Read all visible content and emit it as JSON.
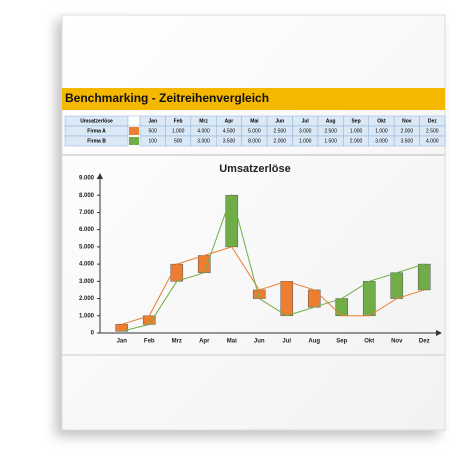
{
  "header": {
    "title": "Benchmarking - Zeitreihenvergleich"
  },
  "table": {
    "corner": "Umsatzerlöse",
    "columns": [
      "Jan",
      "Feb",
      "Mrz",
      "Apr",
      "Mai",
      "Jun",
      "Jul",
      "Aug",
      "Sep",
      "Okt",
      "Nov",
      "Dez"
    ],
    "rows": [
      {
        "label": "Firma A",
        "cells": [
          "500",
          "1.000",
          "4.000",
          "4.500",
          "5.000",
          "2.500",
          "3.000",
          "2.500",
          "1.000",
          "1.000",
          "2.000",
          "2.500"
        ]
      },
      {
        "label": "Firma B",
        "cells": [
          "100",
          "500",
          "3.000",
          "3.500",
          "8.000",
          "2.000",
          "1.000",
          "1.500",
          "2.000",
          "3.000",
          "3.500",
          "4.000"
        ]
      }
    ]
  },
  "chart_data": {
    "type": "range_bar",
    "title": "Umsatzerlöse",
    "categories": [
      "Jan",
      "Feb",
      "Mrz",
      "Apr",
      "Mai",
      "Jun",
      "Jul",
      "Aug",
      "Sep",
      "Okt",
      "Nov",
      "Dez"
    ],
    "series": [
      {
        "name": "Firma A",
        "color": "#ed7d31",
        "values": [
          500,
          1000,
          4000,
          4500,
          5000,
          2500,
          3000,
          2500,
          1000,
          1000,
          2000,
          2500
        ]
      },
      {
        "name": "Firma B",
        "color": "#70ad47",
        "values": [
          100,
          500,
          3000,
          3500,
          8000,
          2000,
          1000,
          1500,
          2000,
          3000,
          3500,
          4000
        ]
      }
    ],
    "ylim": [
      0,
      9000
    ],
    "yticks": [
      0,
      {
        "value": 1000,
        "label": "1.000"
      },
      {
        "value": 2000,
        "label": "2.000"
      },
      {
        "value": 3000,
        "label": "3.000"
      },
      {
        "value": 4000,
        "label": "4.000"
      },
      {
        "value": 5000,
        "label": "5.000"
      },
      {
        "value": 6000,
        "label": "6.000"
      },
      {
        "value": 7000,
        "label": "7.000"
      },
      {
        "value": 8000,
        "label": "8.000"
      },
      {
        "value": 9000,
        "label": "9.000"
      }
    ]
  }
}
